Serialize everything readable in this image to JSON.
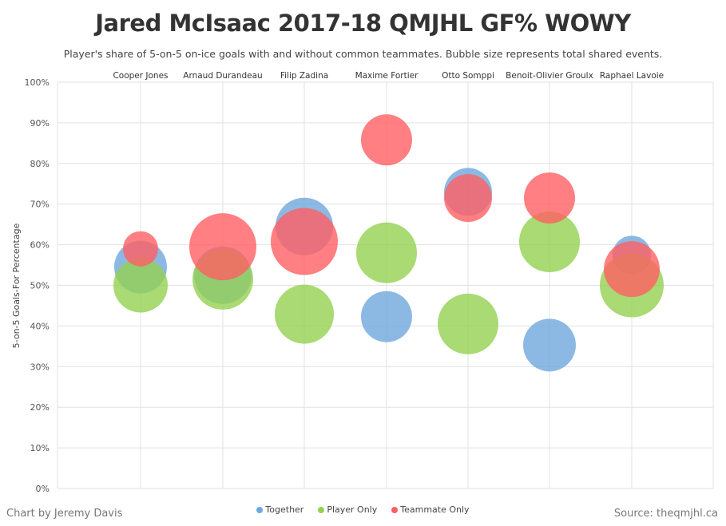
{
  "header": {
    "title": "Jared McIsaac 2017-18 QMJHL GF% WOWY",
    "subtitle": "Player's share of 5-on-5 on-ice goals with and without common teammates. Bubble size represents total shared events."
  },
  "footer": {
    "credit": "Chart by Jeremy Davis",
    "source": "Source: theqmjhl.ca"
  },
  "colors": {
    "together": "#6fa8dc",
    "player_only": "#93d150",
    "teammate_only": "#ff5f63"
  },
  "chart_data": {
    "type": "scatter",
    "ylabel": "5-on-5 Goals-For Percentage",
    "ylim": [
      0,
      100
    ],
    "yticks": [
      "0%",
      "10%",
      "20%",
      "30%",
      "40%",
      "50%",
      "60%",
      "70%",
      "80%",
      "90%",
      "100%"
    ],
    "yticks_values": [
      0,
      10,
      20,
      30,
      40,
      50,
      60,
      70,
      80,
      90,
      100
    ],
    "grid": true,
    "legend": "bottom-center",
    "categories": [
      "Cooper Jones",
      "Arnaud Durandeau",
      "Filip Zadina",
      "Maxime Fortier",
      "Otto Somppi",
      "Benoit-Olivier Groulx",
      "Raphael Lavoie"
    ],
    "series": [
      {
        "name": "Together",
        "color": "#6fa8dc",
        "values": [
          54.5,
          52.5,
          64.5,
          42.3,
          73.0,
          35.3,
          57.5
        ],
        "sizes": [
          33,
          36,
          36,
          32,
          30,
          33,
          24
        ]
      },
      {
        "name": "Player Only",
        "color": "#93d150",
        "values": [
          50.0,
          51.5,
          42.9,
          58.0,
          40.5,
          60.7,
          50.0
        ]
      },
      {
        "name": "Teammate Only",
        "color": "#ff5f63",
        "values": [
          59.0,
          59.5,
          60.8,
          85.8,
          71.5,
          71.5,
          54.0
        ]
      }
    ],
    "bubble_sizes": {
      "Together": [
        33,
        36,
        36,
        32,
        30,
        33,
        24
      ],
      "Player Only": [
        34,
        38,
        37,
        38,
        38,
        38,
        40
      ],
      "Teammate Only": [
        22,
        42,
        42,
        32,
        30,
        32,
        35
      ]
    }
  }
}
